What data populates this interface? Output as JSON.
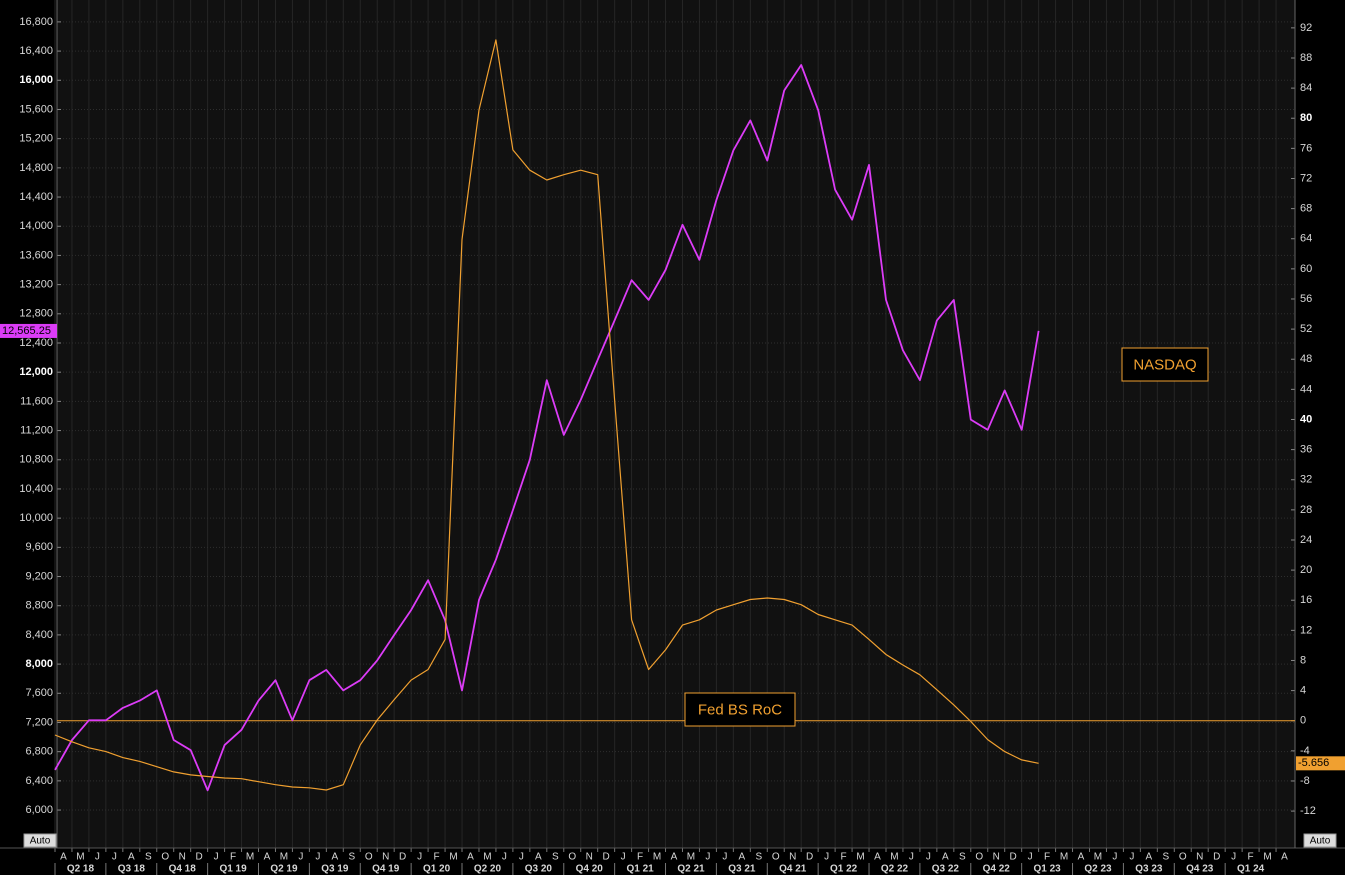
{
  "chart_data": {
    "type": "line",
    "x": [
      "2018-04",
      "2018-05",
      "2018-06",
      "2018-07",
      "2018-08",
      "2018-09",
      "2018-10",
      "2018-11",
      "2018-12",
      "2019-01",
      "2019-02",
      "2019-03",
      "2019-04",
      "2019-05",
      "2019-06",
      "2019-07",
      "2019-08",
      "2019-09",
      "2019-10",
      "2019-11",
      "2019-12",
      "2020-01",
      "2020-02",
      "2020-03",
      "2020-04",
      "2020-05",
      "2020-06",
      "2020-07",
      "2020-08",
      "2020-09",
      "2020-10",
      "2020-11",
      "2020-12",
      "2021-01",
      "2021-02",
      "2021-03",
      "2021-04",
      "2021-05",
      "2021-06",
      "2021-07",
      "2021-08",
      "2021-09",
      "2021-10",
      "2021-11",
      "2021-12",
      "2022-01",
      "2022-02",
      "2022-03",
      "2022-04",
      "2022-05",
      "2022-06",
      "2022-07",
      "2022-08",
      "2022-09",
      "2022-10",
      "2022-11",
      "2022-12",
      "2023-01",
      "2023-02"
    ],
    "series": [
      {
        "name": "NASDAQ",
        "color": "#dc3cf7",
        "axis": "y",
        "last_label": "12,565.25",
        "values": [
          6550,
          6960,
          7230,
          7230,
          7400,
          7500,
          7640,
          6960,
          6820,
          6270,
          6890,
          7100,
          7500,
          7780,
          7230,
          7780,
          7920,
          7640,
          7780,
          8050,
          8400,
          8740,
          9150,
          8600,
          7640,
          8880,
          9430,
          10110,
          10800,
          11890,
          11140,
          11620,
          12170,
          12710,
          13260,
          12990,
          13400,
          14020,
          13540,
          14360,
          15040,
          15450,
          14900,
          15860,
          16210,
          15590,
          14500,
          14090,
          14840,
          12990,
          12300,
          11890,
          12710,
          12990,
          11350,
          11210,
          11750,
          11210,
          12565.25
        ]
      },
      {
        "name": "Fed BS RoC",
        "color": "#f0a030",
        "axis": "y2",
        "last_label": "-5.656",
        "values": [
          -1.9,
          -2.8,
          -3.6,
          -4.1,
          -4.9,
          -5.4,
          -6.1,
          -6.8,
          -7.2,
          -7.4,
          -7.6,
          -7.7,
          -8.1,
          -8.5,
          -8.8,
          -8.9,
          -9.2,
          -8.5,
          -3.2,
          0.1,
          2.8,
          5.4,
          6.8,
          10.8,
          63.9,
          81.1,
          90.4,
          75.8,
          73.1,
          71.8,
          72.5,
          73.1,
          72.5,
          42.6,
          13.4,
          6.8,
          9.4,
          12.7,
          13.4,
          14.7,
          15.4,
          16.1,
          16.3,
          16.1,
          15.4,
          14.1,
          13.4,
          12.7,
          10.8,
          8.8,
          7.4,
          6.1,
          4.1,
          2.1,
          -0.1,
          -2.5,
          -4.1,
          -5.2,
          -5.656
        ]
      }
    ],
    "xlim": [
      "2018-04",
      "2024-05"
    ],
    "xticks": [
      {
        "value": "2018-04",
        "label": "A"
      },
      {
        "value": "2018-05",
        "label": "M"
      },
      {
        "value": "2018-06",
        "label": "J"
      },
      {
        "value": "2018-07",
        "label": "J"
      },
      {
        "value": "2018-08",
        "label": "A"
      },
      {
        "value": "2018-09",
        "label": "S"
      },
      {
        "value": "2018-10",
        "label": "O"
      },
      {
        "value": "2018-11",
        "label": "N"
      },
      {
        "value": "2018-12",
        "label": "D"
      },
      {
        "value": "2019-01",
        "label": "J"
      },
      {
        "value": "2019-02",
        "label": "F"
      },
      {
        "value": "2019-03",
        "label": "M"
      },
      {
        "value": "2019-04",
        "label": "A"
      },
      {
        "value": "2019-05",
        "label": "M"
      },
      {
        "value": "2019-06",
        "label": "J"
      },
      {
        "value": "2019-07",
        "label": "J"
      },
      {
        "value": "2019-08",
        "label": "A"
      },
      {
        "value": "2019-09",
        "label": "S"
      },
      {
        "value": "2019-10",
        "label": "O"
      },
      {
        "value": "2019-11",
        "label": "N"
      },
      {
        "value": "2019-12",
        "label": "D"
      },
      {
        "value": "2020-01",
        "label": "J"
      },
      {
        "value": "2020-02",
        "label": "F"
      },
      {
        "value": "2020-03",
        "label": "M"
      },
      {
        "value": "2020-04",
        "label": "A"
      },
      {
        "value": "2020-05",
        "label": "M"
      },
      {
        "value": "2020-06",
        "label": "J"
      },
      {
        "value": "2020-07",
        "label": "J"
      },
      {
        "value": "2020-08",
        "label": "A"
      },
      {
        "value": "2020-09",
        "label": "S"
      },
      {
        "value": "2020-10",
        "label": "O"
      },
      {
        "value": "2020-11",
        "label": "N"
      },
      {
        "value": "2020-12",
        "label": "D"
      },
      {
        "value": "2021-01",
        "label": "J"
      },
      {
        "value": "2021-02",
        "label": "F"
      },
      {
        "value": "2021-03",
        "label": "M"
      },
      {
        "value": "2021-04",
        "label": "A"
      },
      {
        "value": "2021-05",
        "label": "M"
      },
      {
        "value": "2021-06",
        "label": "J"
      },
      {
        "value": "2021-07",
        "label": "J"
      },
      {
        "value": "2021-08",
        "label": "A"
      },
      {
        "value": "2021-09",
        "label": "S"
      },
      {
        "value": "2021-10",
        "label": "O"
      },
      {
        "value": "2021-11",
        "label": "N"
      },
      {
        "value": "2021-12",
        "label": "D"
      },
      {
        "value": "2022-01",
        "label": "J"
      },
      {
        "value": "2022-02",
        "label": "F"
      },
      {
        "value": "2022-03",
        "label": "M"
      },
      {
        "value": "2022-04",
        "label": "A"
      },
      {
        "value": "2022-05",
        "label": "M"
      },
      {
        "value": "2022-06",
        "label": "J"
      },
      {
        "value": "2022-07",
        "label": "J"
      },
      {
        "value": "2022-08",
        "label": "A"
      },
      {
        "value": "2022-09",
        "label": "S"
      },
      {
        "value": "2022-10",
        "label": "O"
      },
      {
        "value": "2022-11",
        "label": "N"
      },
      {
        "value": "2022-12",
        "label": "D"
      },
      {
        "value": "2023-01",
        "label": "J"
      },
      {
        "value": "2023-02",
        "label": "F"
      },
      {
        "value": "2023-03",
        "label": "M"
      },
      {
        "value": "2023-04",
        "label": "A"
      },
      {
        "value": "2023-05",
        "label": "M"
      },
      {
        "value": "2023-06",
        "label": "J"
      },
      {
        "value": "2023-07",
        "label": "J"
      },
      {
        "value": "2023-08",
        "label": "A"
      },
      {
        "value": "2023-09",
        "label": "S"
      },
      {
        "value": "2023-10",
        "label": "O"
      },
      {
        "value": "2023-11",
        "label": "N"
      },
      {
        "value": "2023-12",
        "label": "D"
      },
      {
        "value": "2024-01",
        "label": "J"
      },
      {
        "value": "2024-02",
        "label": "F"
      },
      {
        "value": "2024-03",
        "label": "M"
      },
      {
        "value": "2024-04",
        "label": "A"
      }
    ],
    "quarter_ticks": [
      {
        "value": "2018-04",
        "label": "Q2 18"
      },
      {
        "value": "2018-07",
        "label": "Q3 18"
      },
      {
        "value": "2018-10",
        "label": "Q4 18"
      },
      {
        "value": "2019-01",
        "label": "Q1 19"
      },
      {
        "value": "2019-04",
        "label": "Q2 19"
      },
      {
        "value": "2019-07",
        "label": "Q3 19"
      },
      {
        "value": "2019-10",
        "label": "Q4 19"
      },
      {
        "value": "2020-01",
        "label": "Q1 20"
      },
      {
        "value": "2020-04",
        "label": "Q2 20"
      },
      {
        "value": "2020-07",
        "label": "Q3 20"
      },
      {
        "value": "2020-10",
        "label": "Q4 20"
      },
      {
        "value": "2021-01",
        "label": "Q1 21"
      },
      {
        "value": "2021-04",
        "label": "Q2 21"
      },
      {
        "value": "2021-07",
        "label": "Q3 21"
      },
      {
        "value": "2021-10",
        "label": "Q4 21"
      },
      {
        "value": "2022-01",
        "label": "Q1 22"
      },
      {
        "value": "2022-04",
        "label": "Q2 22"
      },
      {
        "value": "2022-07",
        "label": "Q3 22"
      },
      {
        "value": "2022-10",
        "label": "Q4 22"
      },
      {
        "value": "2023-01",
        "label": "Q1 23"
      },
      {
        "value": "2023-04",
        "label": "Q2 23"
      },
      {
        "value": "2023-07",
        "label": "Q3 23"
      },
      {
        "value": "2023-10",
        "label": "Q4 23"
      },
      {
        "value": "2024-01",
        "label": "Q1 24"
      }
    ],
    "ylim": [
      5480,
      17100
    ],
    "yticks": [
      {
        "value": 6000,
        "label": "6,000"
      },
      {
        "value": 6400,
        "label": "6,400"
      },
      {
        "value": 6800,
        "label": "6,800"
      },
      {
        "value": 7200,
        "label": "7,200"
      },
      {
        "value": 7600,
        "label": "7,600"
      },
      {
        "value": 8000,
        "label": "8,000"
      },
      {
        "value": 8400,
        "label": "8,400"
      },
      {
        "value": 8800,
        "label": "8,800"
      },
      {
        "value": 9200,
        "label": "9,200"
      },
      {
        "value": 9600,
        "label": "9,600"
      },
      {
        "value": 10000,
        "label": "10,000"
      },
      {
        "value": 10400,
        "label": "10,400"
      },
      {
        "value": 10800,
        "label": "10,800"
      },
      {
        "value": 11200,
        "label": "11,200"
      },
      {
        "value": 11600,
        "label": "11,600"
      },
      {
        "value": 12000,
        "label": "12,000"
      },
      {
        "value": 12400,
        "label": "12,400"
      },
      {
        "value": 12800,
        "label": "12,800"
      },
      {
        "value": 13200,
        "label": "13,200"
      },
      {
        "value": 13600,
        "label": "13,600"
      },
      {
        "value": 14000,
        "label": "14,000"
      },
      {
        "value": 14400,
        "label": "14,400"
      },
      {
        "value": 14800,
        "label": "14,800"
      },
      {
        "value": 15200,
        "label": "15,200"
      },
      {
        "value": 15600,
        "label": "15,600"
      },
      {
        "value": 16000,
        "label": "16,000"
      },
      {
        "value": 16400,
        "label": "16,400"
      },
      {
        "value": 16800,
        "label": "16,800"
      }
    ],
    "y2lim": [
      -16.9,
      95.7
    ],
    "y2ticks": [
      -12,
      -8,
      -4,
      0,
      4,
      8,
      12,
      16,
      20,
      24,
      28,
      32,
      36,
      40,
      44,
      48,
      52,
      56,
      60,
      64,
      68,
      72,
      76,
      80,
      84,
      88,
      92
    ],
    "zero_line": 0,
    "grid": true,
    "buttons": [
      "Auto",
      "Auto"
    ]
  }
}
